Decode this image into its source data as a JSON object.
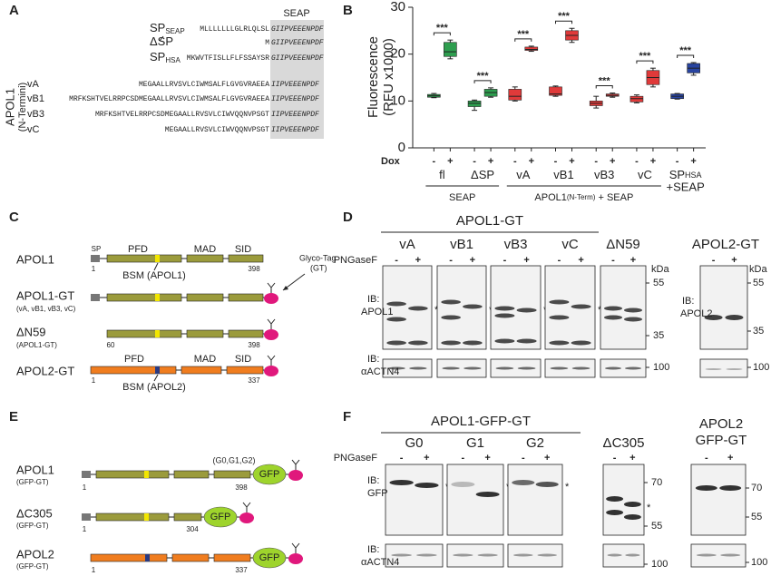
{
  "a": {
    "label": "A",
    "seap": "SEAP",
    "group": [
      "APOL1",
      "(N-Termini)"
    ],
    "rows": [
      {
        "name": "SP",
        "sub": "SEAP",
        "signal": "MLLLLLLLGLRLQLSL",
        "mature": "GIIPVEEENPDF",
        "color": "#1a9a3a"
      },
      {
        "name": "ΔSP",
        "signal": "M",
        "mature": "GIIPVEEENPDF",
        "color": "#1a9a3a"
      },
      {
        "name": "SP",
        "sub": "HSA",
        "signal": "MKWVTFISLLFLFSSAYSR",
        "mature": "GIIPVEEENPDF",
        "color": "#2a2a9a"
      },
      {
        "name": "vA",
        "signal": "MEGAALLRVSVLCIWMSALFLGVGVRAEEA",
        "mature": "IIPVEEENPDF",
        "color": "#d02020"
      },
      {
        "name": "vB1",
        "signal": "MRFKSHTVELRRPCSDMEGAALLRVSVLCIWMSALFLGVGVRAEEA",
        "mature": "IIPVEEENPDF",
        "color": "#d02020"
      },
      {
        "name": "vB3",
        "signal": "MRFKSHTVELRRPCSDMEGAALLRVSVLCIWVQQNVPSGT",
        "mature": "IIPVEEENPDF",
        "color": "#d02020"
      },
      {
        "name": "vC",
        "signal": "MEGAALLRVSVLCIWVQQNVPSGT",
        "mature": "IIPVEEENPDF",
        "color": "#d02020"
      }
    ]
  },
  "b": {
    "label": "B",
    "type": "box",
    "ylabel": [
      "Fluorescence",
      "(RFU x1000)"
    ],
    "ylim": [
      0,
      30
    ],
    "yticks": [
      0,
      10,
      20,
      30
    ],
    "dox": "Dox",
    "signs": [
      "-",
      "+"
    ],
    "sig": "***",
    "groups": [
      {
        "name": "fl",
        "color": "#2e9e4f",
        "boxes": [
          {
            "min": 10.7,
            "q1": 10.8,
            "median": 11.1,
            "q3": 11.4,
            "max": 11.6
          },
          {
            "min": 19,
            "q1": 19.5,
            "median": 20.5,
            "q3": 22.5,
            "max": 23
          }
        ]
      },
      {
        "name": "ΔSP",
        "color": "#2e9e4f",
        "boxes": [
          {
            "min": 8,
            "q1": 8.8,
            "median": 9.5,
            "q3": 10,
            "max": 10.2
          },
          {
            "min": 10.8,
            "q1": 11,
            "median": 11.8,
            "q3": 12.5,
            "max": 12.8
          }
        ]
      },
      {
        "name": "vA",
        "color": "#e03a3a",
        "boxes": [
          {
            "min": 10,
            "q1": 10.2,
            "median": 11,
            "q3": 12.5,
            "max": 13
          },
          {
            "min": 20.6,
            "q1": 20.8,
            "median": 21,
            "q3": 21.5,
            "max": 21.7
          }
        ]
      },
      {
        "name": "vB1",
        "color": "#e03a3a",
        "boxes": [
          {
            "min": 11,
            "q1": 11.2,
            "median": 11.5,
            "q3": 13,
            "max": 13.2
          },
          {
            "min": 22.5,
            "q1": 23,
            "median": 24,
            "q3": 25,
            "max": 25.5
          }
        ]
      },
      {
        "name": "vB3",
        "color": "#e03a3a",
        "boxes": [
          {
            "min": 8.5,
            "q1": 9,
            "median": 9.5,
            "q3": 10,
            "max": 11
          },
          {
            "min": 10.8,
            "q1": 11,
            "median": 11.2,
            "q3": 11.5,
            "max": 11.7
          }
        ]
      },
      {
        "name": "vC",
        "color": "#e03a3a",
        "boxes": [
          {
            "min": 9.6,
            "q1": 9.8,
            "median": 10.5,
            "q3": 11,
            "max": 11.3
          },
          {
            "min": 13,
            "q1": 13.5,
            "median": 15,
            "q3": 16.5,
            "max": 17
          }
        ]
      },
      {
        "name": "SP",
        "sub": "HSA",
        "extra": "+SEAP",
        "color": "#2844a0",
        "boxes": [
          {
            "min": 10.4,
            "q1": 10.5,
            "median": 11,
            "q3": 11.5,
            "max": 11.6
          },
          {
            "min": 15.5,
            "q1": 16,
            "median": 17,
            "q3": 18,
            "max": 18.2
          }
        ]
      }
    ],
    "brackets": [
      {
        "label": "SEAP"
      },
      {
        "label": "APOL1",
        "sub": "(N-Term)",
        "rest": " + SEAP"
      }
    ]
  },
  "c": {
    "label": "C",
    "apol1": "APOL1",
    "sp": "SP",
    "pfd": "PFD",
    "mad": "MAD",
    "sid": "SID",
    "start": "1",
    "end1": "398",
    "bsm1": "BSM (APOL1)",
    "glyco": "Glyco-Tag",
    "gt": "(GT)",
    "apol1gt": "APOL1-GT",
    "variants": "(vA, vB1, vB3, vC)",
    "dn59": "ΔN59",
    "dn59sub": "(APOL1-GT)",
    "start59": "60",
    "apol2gt": "APOL2-GT",
    "end2": "337",
    "bsm2": "BSM (APOL2)"
  },
  "d": {
    "label": "D",
    "title": "APOL1-GT",
    "lanes": [
      "vA",
      "vB1",
      "vB3",
      "vC",
      "ΔN59"
    ],
    "png": "PNGaseF",
    "signs": [
      "-",
      "+"
    ],
    "kda": "kDa",
    "mw": [
      "55",
      "35",
      "100"
    ],
    "ib": "IB:",
    "apol1": "APOL1",
    "actn": "αACTN4",
    "title2": "APOL2-GT",
    "apol2": "APOL2",
    "star": "*"
  },
  "e": {
    "label": "E",
    "apol1": "APOL1",
    "gfpgt": "(GFP-GT)",
    "g": "(G0,G1,G2)",
    "end1": "398",
    "start": "1",
    "gfp": "GFP",
    "dc305": "ΔC305",
    "end304": "304",
    "apol2": "APOL2",
    "end2": "337"
  },
  "f": {
    "label": "F",
    "title": "APOL1-GFP-GT",
    "lanes": [
      "G0",
      "G1",
      "G2",
      "ΔC305"
    ],
    "png": "PNGaseF",
    "signs": [
      "-",
      "+"
    ],
    "ib": "IB:",
    "gfp": "GFP",
    "actn": "αACTN4",
    "mw": [
      "70",
      "55",
      "100"
    ],
    "title2": [
      "APOL2",
      "GFP-GT"
    ],
    "star": "*"
  }
}
